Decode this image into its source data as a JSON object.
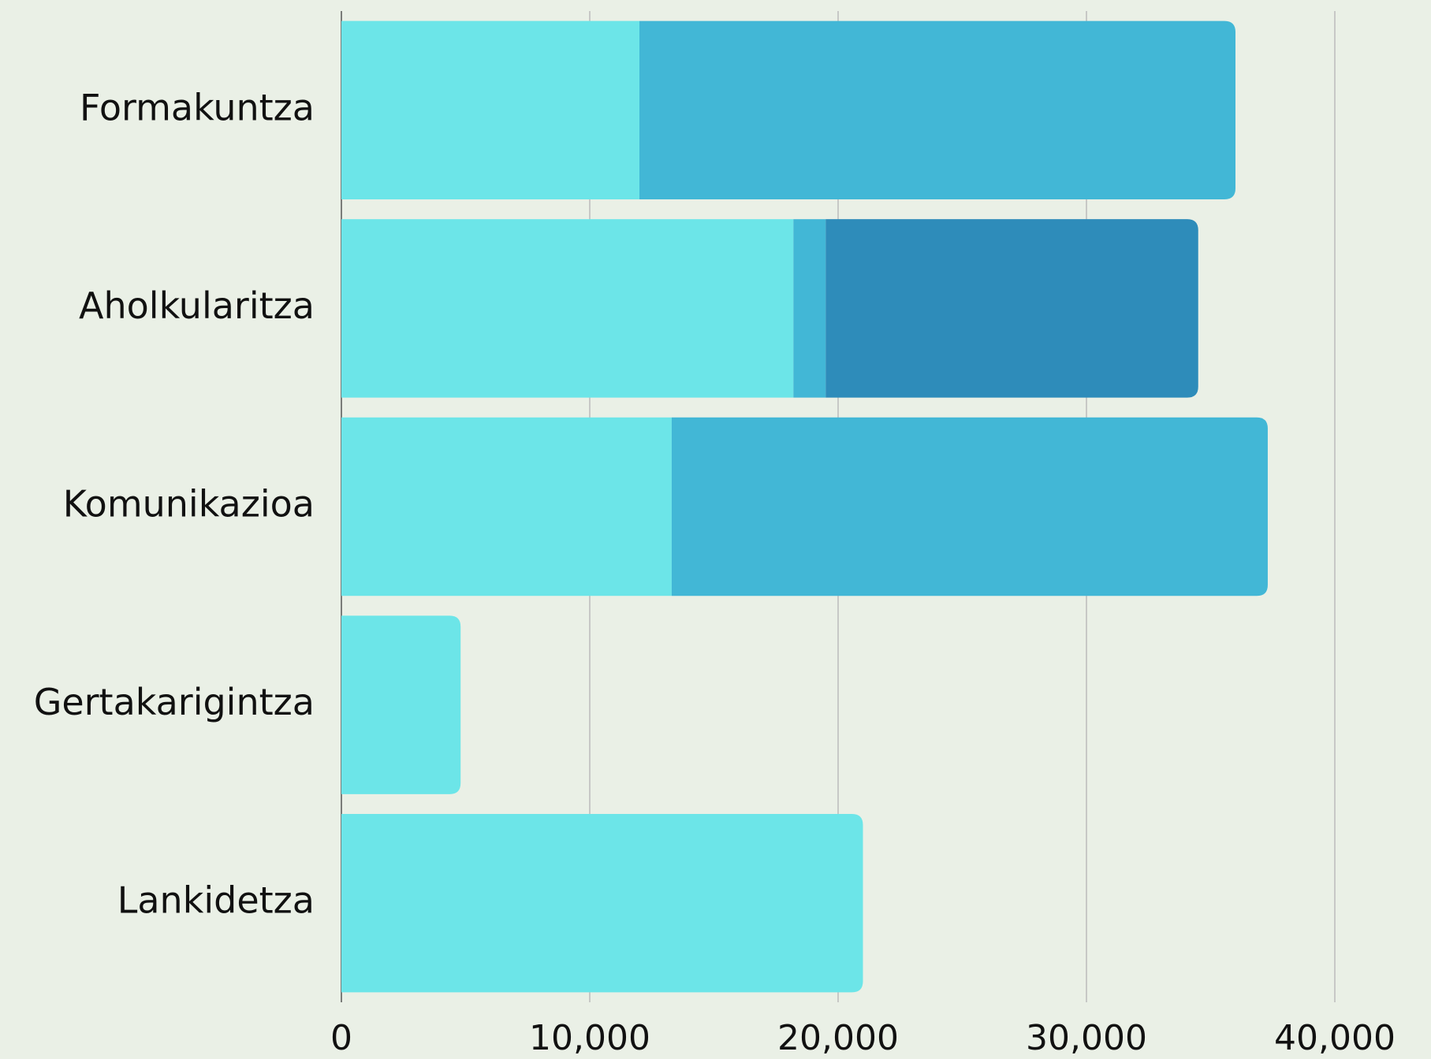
{
  "chart_data": {
    "type": "stacked-bar-horizontal",
    "categories": [
      "Formakuntza",
      "Aholkularitza",
      "Komunikazioa",
      "Gertakarigintza",
      "Lankidetza"
    ],
    "series": [
      {
        "color": "#6ce5e8",
        "values": [
          12000,
          18200,
          13300,
          4800,
          21000
        ]
      },
      {
        "color": "#42b7d6",
        "values": [
          24000,
          1300,
          24000,
          null,
          null
        ]
      },
      {
        "color": "#2e8cba",
        "values": [
          null,
          15000,
          null,
          null,
          null
        ]
      }
    ],
    "xlim": [
      0,
      40000
    ],
    "xticks": [
      0,
      {
        "value": 10000,
        "label": "10,000"
      },
      {
        "value": 20000,
        "label": "20,000"
      },
      {
        "value": 30000,
        "label": "30,000"
      },
      {
        "value": 40000,
        "label": "40,000"
      }
    ],
    "grid": true
  }
}
